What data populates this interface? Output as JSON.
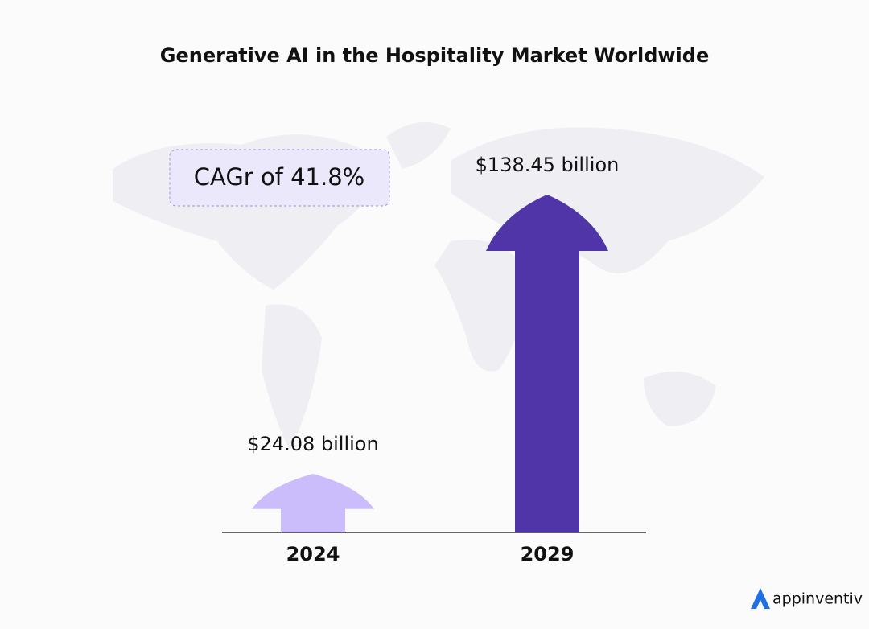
{
  "chart_data": {
    "type": "arrow",
    "title": "Generative AI in the Hospitality Market Worldwide",
    "annotation": "CAGr of 41.8%",
    "categories": [
      "2024",
      "2029"
    ],
    "values": [
      24.08,
      138.45
    ],
    "value_labels": [
      "$24.08 billion",
      "$138.45 billion"
    ],
    "colors": [
      "#cbbdfc",
      "#5035a8"
    ]
  },
  "brand": "appinventiv"
}
